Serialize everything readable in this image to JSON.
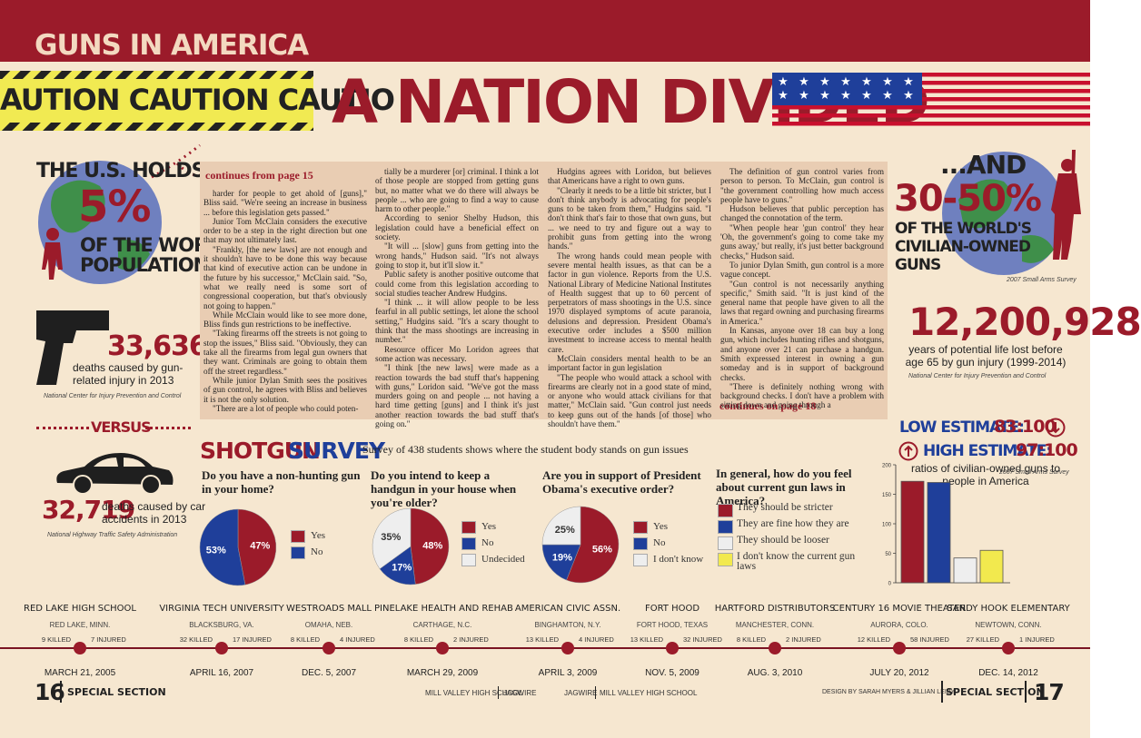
{
  "header": {
    "section": "GUNS IN AMERICA",
    "caution": "AUTION CAUTION CAUTIO",
    "title": "A NATION DIVIDED"
  },
  "left": {
    "population": {
      "lines": [
        "THE U.S. HOLDS",
        "5%",
        "OF THE WORLD",
        "POPULATION..."
      ]
    },
    "gun_deaths": {
      "number": "33,636",
      "text": "deaths caused by gun-related injury in 2013",
      "source": "National Center for Injury Prevention and Control"
    },
    "versus": "VERSUS",
    "car_deaths": {
      "number": "32,719",
      "text": "deaths caused by car accidents in 2013",
      "source": "National Highway Traffic Safety Administration"
    }
  },
  "right": {
    "guns_share": {
      "lines": [
        "...AND",
        "30-50%",
        "OF THE WORLD'S",
        "CIVILIAN-OWNED",
        "GUNS"
      ],
      "source": "2007 Small Arms Survey"
    },
    "life_lost": {
      "number": "12,200,928",
      "text": "years of potential life lost before age 65 by gun injury (1999-2014)",
      "source": "National Center for Injury Prevention and Control"
    },
    "low": {
      "label": "LOW ESTIMATE:",
      "value": "83:100"
    },
    "high": {
      "label": "HIGH ESTIMATE:",
      "value": "97:100"
    },
    "ratio_text": "ratios of civilian-owned guns to people in America",
    "ratio_source": "2007 Small Arms Survey"
  },
  "article": {
    "continues_from": "continues from page 15",
    "columns": [
      [
        "harder for people to get ahold of [guns],\" Bliss said. \"We're seeing an increase in business ... before this legislation gets passed.\"",
        "Junior Tom McClain considers the executive order to be a step in the right direction but one that may not ultimately last.",
        "\"Frankly, [the new laws] are not enough and it shouldn't have to be done this way because that kind of executive action can be undone in the future by his successor,\" McClain said. \"So, what we really need is some sort of congressional cooperation, but that's obviously not going to happen.\"",
        "While McClain would like to see more done, Bliss finds gun restrictions to be ineffective.",
        "\"Taking firearms off the streets is not going to stop the issues,\" Bliss said. \"Obviously, they can take all the firearms from legal gun owners that they want. Criminals are going to obtain them off the street regardless.\"",
        "While junior Dylan Smith sees the positives of gun control, he agrees with Bliss and believes it is not the only solution.",
        "\"There are a lot of people who could poten-"
      ],
      [
        "tially be a murderer [or] criminal. I think a lot of those people are stopped from getting guns but, no matter what we do there will always be people ... who are going to find a way to cause harm to other people.\"",
        "According to senior Shelby Hudson, this legislation could have a beneficial effect on society.",
        "\"It will ... [slow] guns from getting into the wrong hands,\" Hudson said. \"It's not always going to stop it, but it'll slow it.\"",
        "Public safety is another positive outcome that could come from this legislation according to social studies teacher Andrew Hudgins.",
        "\"I think ... it will allow people to be less fearful in all public settings, let alone the school setting,\" Hudgins said. \"It's a scary thought to think that the mass shootings are increasing in number.\"",
        "Resource officer Mo Loridon agrees that some action was necessary.",
        "\"I think [the new laws] were made as a reaction towards the bad stuff that's happening with guns,\" Loridon said. \"We've got the mass murders going on and people ... not having a hard time getting [guns] and I think it's just another reaction towards the bad stuff that's going on.\""
      ],
      [
        "Hudgins agrees with Loridon, but believes that Americans have a right to own guns.",
        "\"Clearly it needs to be a little bit stricter, but I don't think anybody is advocating for people's guns to be taken from them,\" Hudgins said. \"I don't think that's fair to those that own guns, but ... we need to try and figure out a way to prohibit guns from getting into the wrong hands.\"",
        "The wrong hands could mean people with severe mental health issues, as that can be a factor in gun violence. Reports from the U.S. National Library of Medicine National Institutes of Health suggest that up to 60 percent of perpetrators of mass shootings in the U.S. since 1970 displayed symptoms of acute paranoia, delusions and depression. President Obama's executive order includes a $500 million investment to increase access to mental health care.",
        "McClain considers mental health to be an important factor in gun legislation",
        "\"The people who would attack a school with firearms are clearly not in a good state of mind, or anyone who would attack civilians for that matter,\" McClain said. \"Gun control just needs to keep guns out of the hands [of those] who shouldn't have them.\""
      ],
      [
        "The definition of gun control varies from person to person. To McClain, gun control is \"the government controlling how much access people have to guns.\"",
        "Hudson believes that public perception has changed the connotation of the term.",
        "\"When people hear 'gun control' they hear 'Oh, the government's going to come take my guns away,' but really, it's just better background checks,\" Hudson said.",
        "To junior Dylan Smith, gun control is a more vague concept.",
        "\"Gun control is not necessarily anything specific,\" Smith said. \"It is just kind of the general name that people have given to all the laws that regard owning and purchasing firearms in America.\"",
        "In Kansas, anyone over 18 can buy a long gun, which includes hunting rifles and shotguns, and anyone over 21 can purchase a handgun. Smith expressed interest in owning a gun someday and is in support of background checks.",
        "\"There is definitely nothing wrong with background checks. I don't have a problem with sitting down and going through a"
      ]
    ],
    "continues_on": "continues on page 18"
  },
  "survey": {
    "title_a": "SHOTGUN",
    "title_b": "SURVEY",
    "subtitle": "Survey of 438 students shows where the student body stands on gun issues"
  },
  "chart_data": [
    {
      "type": "pie",
      "title": "Do you have a non-hunting gun in your home?",
      "categories": [
        "Yes",
        "No"
      ],
      "values": [
        47,
        53
      ],
      "value_labels": [
        "47%",
        "53%"
      ],
      "colors": [
        "#9b1b2a",
        "#1f3f9a"
      ]
    },
    {
      "type": "pie",
      "title": "Do you intend to keep a handgun in your house when you're older?",
      "categories": [
        "Yes",
        "No",
        "Undecided"
      ],
      "values": [
        48,
        17,
        35
      ],
      "value_labels": [
        "48%",
        "17%",
        "35%"
      ],
      "colors": [
        "#9b1b2a",
        "#1f3f9a",
        "#eeeeee"
      ]
    },
    {
      "type": "pie",
      "title": "Are you in support of President Obama's executive order?",
      "categories": [
        "Yes",
        "No",
        "I don't know"
      ],
      "values": [
        56,
        19,
        25
      ],
      "value_labels": [
        "56%",
        "19%",
        "25%"
      ],
      "colors": [
        "#9b1b2a",
        "#1f3f9a",
        "#eeeeee"
      ]
    },
    {
      "type": "bar",
      "title": "In general, how do you feel about current gun laws in America?",
      "categories": [
        "They should be stricter",
        "They are fine how they are",
        "They should be looser",
        "I don't know the current gun laws"
      ],
      "values": [
        172,
        170,
        42,
        55
      ],
      "colors": [
        "#9b1b2a",
        "#1f3f9a",
        "#eeeeee",
        "#f2e94e"
      ],
      "ylim": [
        0,
        200
      ],
      "yticks": [
        0,
        50,
        100,
        150,
        200
      ]
    }
  ],
  "timeline": {
    "events": [
      {
        "name": "RED LAKE HIGH SCHOOL",
        "place": "RED LAKE, MINN.",
        "killed": "9 KILLED",
        "injured": "7 INJURED",
        "date": "MARCH 21, 2005"
      },
      {
        "name": "VIRGINIA TECH UNIVERSITY",
        "place": "BLACKSBURG, VA.",
        "killed": "32 KILLED",
        "injured": "17 INJURED",
        "date": "APRIL 16, 2007"
      },
      {
        "name": "WESTROADS MALL",
        "place": "OMAHA, NEB.",
        "killed": "8 KILLED",
        "injured": "4 INJURED",
        "date": "DEC. 5, 2007"
      },
      {
        "name": "PINELAKE HEALTH AND REHAB",
        "place": "CARTHAGE, N.C.",
        "killed": "8 KILLED",
        "injured": "2 INJURED",
        "date": "MARCH 29, 2009"
      },
      {
        "name": "AMERICAN CIVIC ASSN.",
        "place": "BINGHAMTON, N.Y.",
        "killed": "13 KILLED",
        "injured": "4 INJURED",
        "date": "APRIL 3, 2009"
      },
      {
        "name": "FORT HOOD",
        "place": "FORT HOOD, TEXAS",
        "killed": "13 KILLED",
        "injured": "32 INJURED",
        "date": "NOV. 5, 2009"
      },
      {
        "name": "HARTFORD DISTRIBUTORS",
        "place": "MANCHESTER, CONN.",
        "killed": "8 KILLED",
        "injured": "2 INJURED",
        "date": "AUG. 3, 2010"
      },
      {
        "name": "CENTURY 16 MOVIE THEATER",
        "place": "AURORA, COLO.",
        "killed": "12 KILLED",
        "injured": "58 INJURED",
        "date": "JULY 20, 2012"
      },
      {
        "name": "SANDY HOOK ELEMENTARY",
        "place": "NEWTOWN, CONN.",
        "killed": "27 KILLED",
        "injured": "1 INJURED",
        "date": "DEC. 14, 2012"
      }
    ]
  },
  "footer": {
    "left_page": "16",
    "left_section": "SPECIAL SECTION",
    "credits": [
      "MILL VALLEY HIGH SCHOOL",
      "JAGWIRE",
      "JAGWIRE",
      "MILL VALLEY HIGH SCHOOL"
    ],
    "design": "DESIGN BY SARAH MYERS & JILLIAN LEIBY",
    "right_section": "SPECIAL SECTION",
    "right_page": "17"
  }
}
